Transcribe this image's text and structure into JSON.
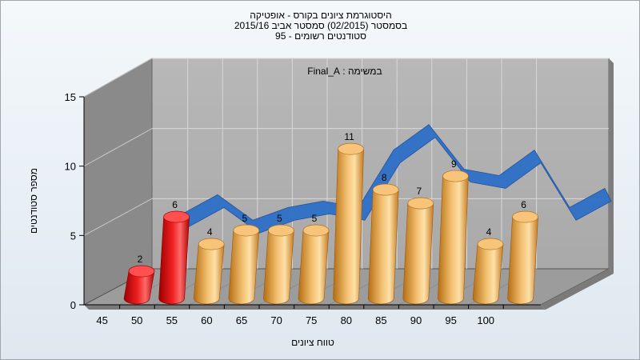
{
  "title_lines": [
    "היסטוגרמת ציונים בקורס - אופטיקה",
    "בסמסטר  (02/2015)  סמסטר אביב 2015/16",
    "סטודנטים רשומים - 95"
  ],
  "colors": {
    "highlight": "#e01010",
    "normal": "#e8a64a",
    "ribbon": "#2e6fc8"
  },
  "chart_data": {
    "type": "bar",
    "annotation": "במשימה : Final_A",
    "xlabel": "טווח ציונים",
    "ylabel": "מספר סטודנטים",
    "ylim": [
      0,
      15
    ],
    "yticks": [
      0,
      5,
      10,
      15
    ],
    "x_tick_labels": [
      "45",
      "50",
      "55",
      "60",
      "65",
      "70",
      "75",
      "80",
      "85",
      "90",
      "95",
      "100"
    ],
    "bars": [
      {
        "bin": "45-50",
        "value": 2,
        "highlight": true
      },
      {
        "bin": "50-55",
        "value": 6,
        "highlight": true
      },
      {
        "bin": "55-60",
        "value": 4,
        "highlight": false
      },
      {
        "bin": "60-65",
        "value": 5,
        "highlight": false
      },
      {
        "bin": "65-70",
        "value": 5,
        "highlight": false
      },
      {
        "bin": "70-75",
        "value": 5,
        "highlight": false
      },
      {
        "bin": "75-80",
        "value": 11,
        "highlight": false
      },
      {
        "bin": "80-85",
        "value": 8,
        "highlight": false
      },
      {
        "bin": "85-90",
        "value": 7,
        "highlight": false
      },
      {
        "bin": "90-95",
        "value": 9,
        "highlight": false
      },
      {
        "bin": "95-100",
        "value": 4,
        "highlight": false
      },
      {
        "bin": "100",
        "value": 6,
        "highlight": false
      }
    ],
    "ribbon_series": [
      6,
      7.5,
      5.5,
      6.5,
      7,
      6.5,
      11,
      13,
      9.5,
      9,
      11,
      6.5,
      8
    ]
  }
}
